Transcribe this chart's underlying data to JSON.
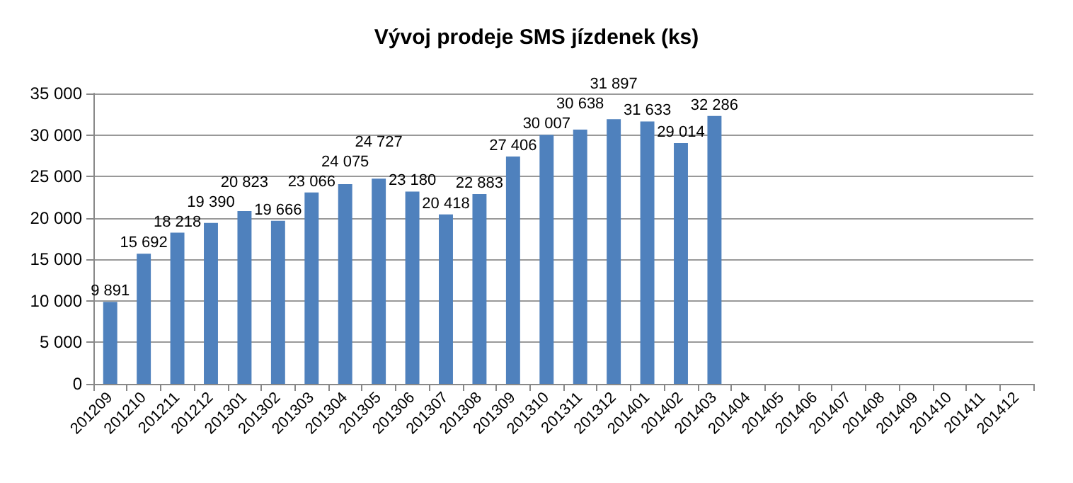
{
  "chart_data": {
    "type": "bar",
    "title": "Vývoj prodeje SMS jízdenek (ks)",
    "categories": [
      "201209",
      "201210",
      "201211",
      "201212",
      "201301",
      "201302",
      "201303",
      "201304",
      "201305",
      "201306",
      "201307",
      "201308",
      "201309",
      "201310",
      "201311",
      "201312",
      "201401",
      "201402",
      "201403",
      "201404",
      "201405",
      "201406",
      "201407",
      "201408",
      "201409",
      "201410",
      "201411",
      "201412"
    ],
    "values": [
      9891,
      15692,
      18218,
      19390,
      20823,
      19666,
      23066,
      24075,
      24727,
      23180,
      20418,
      22883,
      27406,
      30007,
      30638,
      31897,
      31633,
      29014,
      32286,
      null,
      null,
      null,
      null,
      null,
      null,
      null,
      null,
      null
    ],
    "value_labels": [
      "9 891",
      "15 692",
      "18 218",
      "19 390",
      "20 823",
      "19 666",
      "23 066",
      "24 075",
      "24 727",
      "23 180",
      "20 418",
      "22 883",
      "27 406",
      "30 007",
      "30 638",
      "31 897",
      "31 633",
      "29 014",
      "32 286",
      null,
      null,
      null,
      null,
      null,
      null,
      null,
      null,
      null
    ],
    "color": "#4f81bd",
    "ylim": [
      0,
      35000
    ],
    "yticks": [
      0,
      {
        "value": 5000,
        "label": "5 000"
      },
      {
        "value": 10000,
        "label": "10 000"
      },
      {
        "value": 15000,
        "label": "15 000"
      },
      {
        "value": 20000,
        "label": "20 000"
      },
      {
        "value": 25000,
        "label": "25 000"
      },
      {
        "value": 30000,
        "label": "30 000"
      },
      {
        "value": 35000,
        "label": "35 000"
      }
    ],
    "grid": "y"
  }
}
